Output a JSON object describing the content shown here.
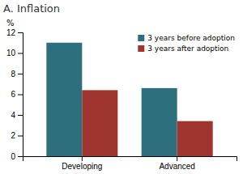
{
  "chart_data": {
    "type": "bar",
    "title": "A.  Inflation",
    "ylabel": "%",
    "categories": [
      "Developing",
      "Advanced"
    ],
    "series": [
      {
        "name": "3 years before adoption",
        "color": "#2e6f7e",
        "values": [
          11.0,
          6.6
        ]
      },
      {
        "name": "3 years after adoption",
        "color": "#a03530",
        "values": [
          6.4,
          3.4
        ]
      }
    ],
    "ylim": [
      0,
      12
    ],
    "yticks": [
      0,
      2,
      4,
      6,
      8,
      10,
      12
    ],
    "grid": false,
    "legend": "top-right"
  }
}
